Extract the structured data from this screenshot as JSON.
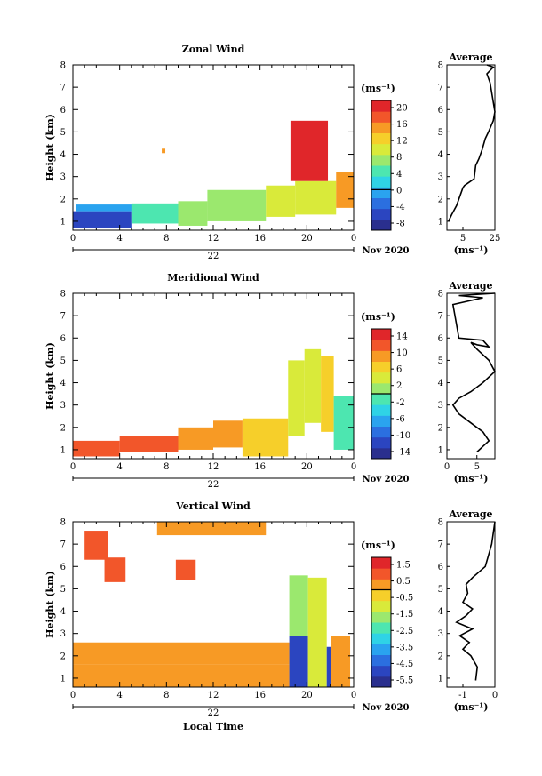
{
  "figure": {
    "date_label": "Nov 2020",
    "day_label": "22",
    "xlabel": "Local Time",
    "ylabel": "Height (km)",
    "unit": "(ms⁻¹)",
    "avg_title": "Average",
    "avg_unit": "(ms⁻¹)"
  },
  "chart_data": [
    {
      "type": "heatmap",
      "title": "Zonal Wind",
      "ylabel": "Height (km)",
      "x_ticks": [
        "0",
        "4",
        "8",
        "12",
        "16",
        "20",
        "0"
      ],
      "y_ticks": [
        "1",
        "2",
        "3",
        "4",
        "5",
        "6",
        "7",
        "8"
      ],
      "xlim": [
        0,
        24
      ],
      "ylim": [
        0.6,
        8
      ],
      "colorbar": {
        "ticks": [
          "20",
          "16",
          "12",
          "8",
          "4",
          "0",
          "-4",
          "-8"
        ],
        "range": [
          -10,
          22
        ],
        "zero_line": 0
      },
      "blocks": [
        {
          "t": [
            0,
            5
          ],
          "h": [
            0.7,
            1.45
          ],
          "v": -7
        },
        {
          "t": [
            0.3,
            5.5
          ],
          "h": [
            1.45,
            1.75
          ],
          "v": -1
        },
        {
          "t": [
            5,
            9
          ],
          "h": [
            0.9,
            1.8
          ],
          "v": 4
        },
        {
          "t": [
            9,
            11.5
          ],
          "h": [
            0.8,
            1.9
          ],
          "v": 8
        },
        {
          "t": [
            11.5,
            16.5
          ],
          "h": [
            1.0,
            2.4
          ],
          "v": 7
        },
        {
          "t": [
            16.5,
            19
          ],
          "h": [
            1.2,
            2.6
          ],
          "v": 9
        },
        {
          "t": [
            19,
            22.5
          ],
          "h": [
            1.3,
            2.8
          ],
          "v": 11
        },
        {
          "t": [
            22.5,
            24
          ],
          "h": [
            1.6,
            3.2
          ],
          "v": 16
        },
        {
          "t": [
            18.6,
            21.8
          ],
          "h": [
            2.8,
            5.5
          ],
          "v": 20
        },
        {
          "t": [
            7.6,
            7.9
          ],
          "h": [
            4.05,
            4.25
          ],
          "v": 15
        }
      ],
      "profile": {
        "xlim": [
          -5,
          25
        ],
        "x_ticks": [
          "5",
          "25"
        ],
        "x": [
          -4,
          -2,
          1,
          3,
          5,
          6,
          8,
          12,
          13,
          15,
          17,
          19,
          21,
          24,
          25,
          22,
          20,
          24,
          20
        ],
        "h": [
          1.0,
          1.3,
          1.7,
          2.1,
          2.5,
          2.6,
          2.7,
          2.9,
          3.5,
          3.8,
          4.2,
          4.7,
          5.0,
          5.5,
          5.9,
          7.2,
          7.6,
          7.9,
          8.0
        ]
      }
    },
    {
      "type": "heatmap",
      "title": "Meridional Wind",
      "ylabel": "Height (km)",
      "x_ticks": [
        "0",
        "4",
        "8",
        "12",
        "16",
        "20",
        "0"
      ],
      "y_ticks": [
        "1",
        "2",
        "3",
        "4",
        "5",
        "6",
        "7",
        "8"
      ],
      "xlim": [
        0,
        24
      ],
      "ylim": [
        0.6,
        8
      ],
      "colorbar": {
        "ticks": [
          "14",
          "10",
          "6",
          "2",
          "-2",
          "-6",
          "-10",
          "-14"
        ],
        "range": [
          -16,
          16
        ],
        "zero_line": 0
      },
      "blocks": [
        {
          "t": [
            0,
            4
          ],
          "h": [
            0.7,
            1.4
          ],
          "v": 13
        },
        {
          "t": [
            4,
            9
          ],
          "h": [
            0.9,
            1.6
          ],
          "v": 11
        },
        {
          "t": [
            9,
            12
          ],
          "h": [
            1.0,
            2.0
          ],
          "v": 10
        },
        {
          "t": [
            12,
            14.5
          ],
          "h": [
            1.1,
            2.3
          ],
          "v": 8
        },
        {
          "t": [
            14.5,
            18.4
          ],
          "h": [
            0.7,
            2.4
          ],
          "v": 7
        },
        {
          "t": [
            18.4,
            19.8
          ],
          "h": [
            1.6,
            5.0
          ],
          "v": 3
        },
        {
          "t": [
            19.8,
            21.2
          ],
          "h": [
            2.2,
            5.5
          ],
          "v": 4
        },
        {
          "t": [
            21.2,
            22.3
          ],
          "h": [
            1.8,
            5.2
          ],
          "v": 6
        },
        {
          "t": [
            22.3,
            24
          ],
          "h": [
            1.0,
            3.4
          ],
          "v": -2
        }
      ],
      "profile": {
        "xlim": [
          0,
          8
        ],
        "x_ticks": [
          "0",
          "5"
        ],
        "x": [
          5,
          7,
          6,
          4,
          2,
          1,
          2,
          4,
          6,
          8,
          7,
          5,
          4,
          5,
          7,
          6,
          2,
          1,
          6,
          2,
          8
        ],
        "h": [
          0.9,
          1.4,
          1.8,
          2.2,
          2.6,
          3.0,
          3.3,
          3.6,
          4.0,
          4.5,
          5.0,
          5.5,
          5.8,
          5.7,
          5.6,
          5.9,
          6.0,
          7.5,
          7.8,
          7.9,
          8.0
        ]
      }
    },
    {
      "type": "heatmap",
      "title": "Vertical Wind",
      "ylabel": "Height (km)",
      "x_ticks": [
        "0",
        "4",
        "8",
        "12",
        "16",
        "20",
        "0"
      ],
      "y_ticks": [
        "1",
        "2",
        "3",
        "4",
        "5",
        "6",
        "7",
        "8"
      ],
      "xlim": [
        0,
        24
      ],
      "ylim": [
        0.6,
        8
      ],
      "colorbar": {
        "ticks": [
          "1.5",
          "0.5",
          "-0.5",
          "-1.5",
          "-2.5",
          "-3.5",
          "-4.5",
          "-5.5"
        ],
        "range": [
          -6,
          2
        ],
        "zero_line": 0
      },
      "blocks": [
        {
          "t": [
            0,
            18.5
          ],
          "h": [
            0.6,
            1.6
          ],
          "v": 0.3
        },
        {
          "t": [
            0,
            18.5
          ],
          "h": [
            1.6,
            2.6
          ],
          "v": 0.6
        },
        {
          "t": [
            18.5,
            20.1
          ],
          "h": [
            0.6,
            2.9
          ],
          "v": -5.3
        },
        {
          "t": [
            18.5,
            20.1
          ],
          "h": [
            2.9,
            5.6
          ],
          "v": -1.5
        },
        {
          "t": [
            20.1,
            21.7
          ],
          "h": [
            0.6,
            5.5
          ],
          "v": -1.3
        },
        {
          "t": [
            21.7,
            22.1
          ],
          "h": [
            0.6,
            2.4
          ],
          "v": -4.8
        },
        {
          "t": [
            22.1,
            23.7
          ],
          "h": [
            0.6,
            2.9
          ],
          "v": 0.2
        },
        {
          "t": [
            2.7,
            4.5
          ],
          "h": [
            5.3,
            6.4
          ],
          "v": 0.7
        },
        {
          "t": [
            1.0,
            3.0
          ],
          "h": [
            6.3,
            7.6
          ],
          "v": 0.8
        },
        {
          "t": [
            8.8,
            10.5
          ],
          "h": [
            5.4,
            6.3
          ],
          "v": 0.9
        },
        {
          "t": [
            7.2,
            16.5
          ],
          "h": [
            7.4,
            8.0
          ],
          "v": 0.6
        }
      ],
      "profile": {
        "xlim": [
          -1.5,
          0
        ],
        "x_ticks": [
          "-1",
          "0"
        ],
        "x": [
          -0.6,
          -0.55,
          -0.75,
          -1.0,
          -0.8,
          -1.1,
          -0.7,
          -1.2,
          -0.9,
          -0.7,
          -1.0,
          -0.85,
          -0.9,
          -0.7,
          -0.3,
          -0.1,
          0
        ],
        "h": [
          0.9,
          1.5,
          2.0,
          2.3,
          2.6,
          2.9,
          3.2,
          3.5,
          3.8,
          4.1,
          4.4,
          4.8,
          5.2,
          5.5,
          6.0,
          7.0,
          8.0
        ]
      }
    }
  ]
}
